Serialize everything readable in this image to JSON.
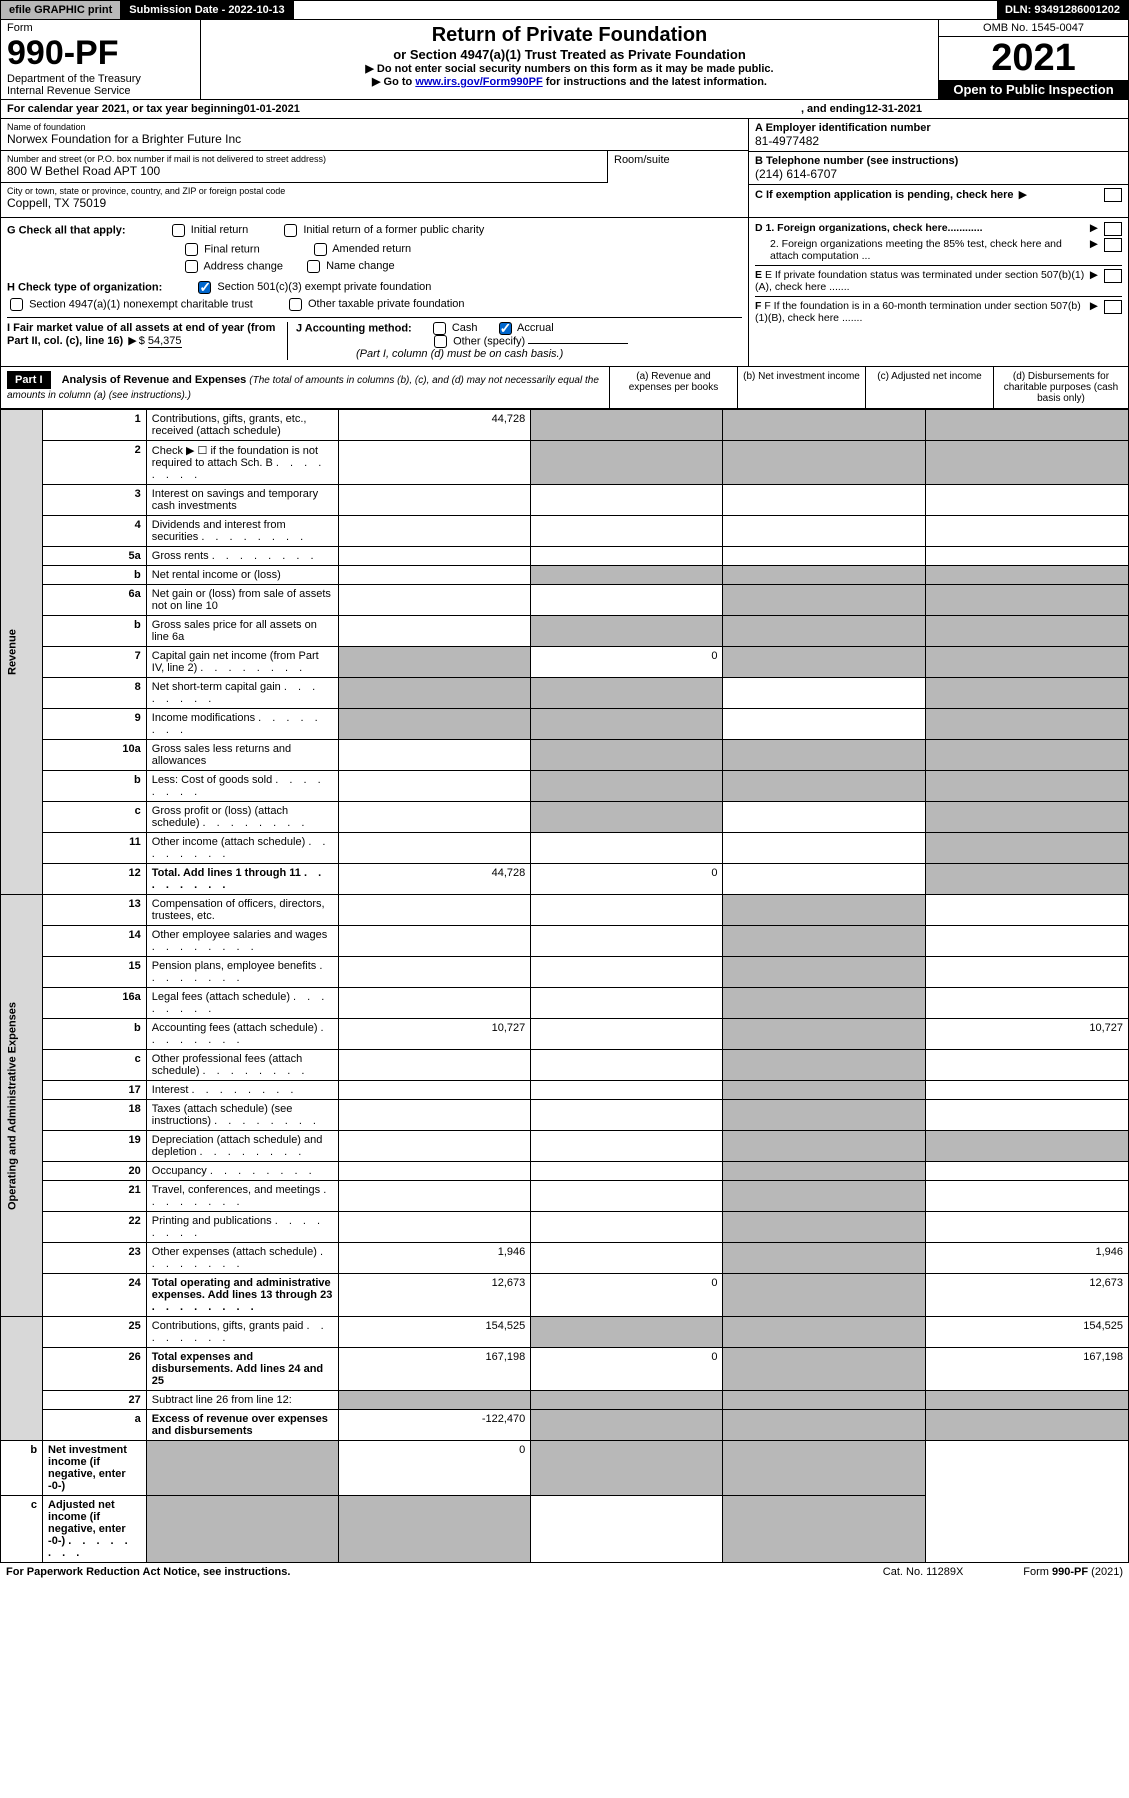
{
  "topbar": {
    "efile": "efile GRAPHIC print",
    "submission": "Submission Date - 2022-10-13",
    "dln": "DLN: 93491286001202"
  },
  "header": {
    "form_label": "Form",
    "form_number": "990-PF",
    "dept1": "Department of the Treasury",
    "dept2": "Internal Revenue Service",
    "title": "Return of Private Foundation",
    "subtitle": "or Section 4947(a)(1) Trust Treated as Private Foundation",
    "instr1": "▶ Do not enter social security numbers on this form as it may be made public.",
    "instr2_pre": "▶ Go to ",
    "instr2_link": "www.irs.gov/Form990PF",
    "instr2_post": " for instructions and the latest information.",
    "omb": "OMB No. 1545-0047",
    "year": "2021",
    "open_public": "Open to Public Inspection"
  },
  "calendar": {
    "pre": "For calendar year 2021, or tax year beginning ",
    "begin": "01-01-2021",
    "mid": ", and ending ",
    "end": "12-31-2021"
  },
  "foundation": {
    "name_label": "Name of foundation",
    "name": "Norwex Foundation for a Brighter Future Inc",
    "addr_label": "Number and street (or P.O. box number if mail is not delivered to street address)",
    "addr": "800 W Bethel Road APT 100",
    "room_label": "Room/suite",
    "city_label": "City or town, state or province, country, and ZIP or foreign postal code",
    "city": "Coppell, TX  75019",
    "ein_label": "A Employer identification number",
    "ein": "81-4977482",
    "tel_label": "B Telephone number (see instructions)",
    "tel": "(214) 614-6707",
    "c_label": "C If exemption application is pending, check here"
  },
  "checks": {
    "g_label": "G Check all that apply:",
    "g_items": [
      "Initial return",
      "Initial return of a former public charity",
      "Final return",
      "Amended return",
      "Address change",
      "Name change"
    ],
    "h_label": "H Check type of organization:",
    "h1": "Section 501(c)(3) exempt private foundation",
    "h2": "Section 4947(a)(1) nonexempt charitable trust",
    "h3": "Other taxable private foundation",
    "i_label": "I Fair market value of all assets at end of year (from Part II, col. (c), line 16)",
    "i_value": "54,375",
    "j_label": "J Accounting method:",
    "j1": "Cash",
    "j2": "Accrual",
    "j3": "Other (specify)",
    "j_note": "(Part I, column (d) must be on cash basis.)",
    "d1": "D 1. Foreign organizations, check here............",
    "d2": "2. Foreign organizations meeting the 85% test, check here and attach computation ...",
    "e": "E If private foundation status was terminated under section 507(b)(1)(A), check here .......",
    "f": "F If the foundation is in a 60-month termination under section 507(b)(1)(B), check here ......."
  },
  "part1": {
    "label": "Part I",
    "title": "Analysis of Revenue and Expenses",
    "title_note": "(The total of amounts in columns (b), (c), and (d) may not necessarily equal the amounts in column (a) (see instructions).)",
    "col_a": "(a)   Revenue and expenses per books",
    "col_b": "(b)   Net investment income",
    "col_c": "(c)   Adjusted net income",
    "col_d": "(d)   Disbursements for charitable purposes (cash basis only)"
  },
  "revenue_label": "Revenue",
  "expenses_label": "Operating and Administrative Expenses",
  "rows": [
    {
      "n": "1",
      "label": "Contributions, gifts, grants, etc., received (attach schedule)",
      "a": "44,728",
      "b_shaded": true,
      "c_shaded": true,
      "d_shaded": true
    },
    {
      "n": "2",
      "label": "Check ▶ ☐ if the foundation is not required to attach Sch. B",
      "dots": true,
      "b_shaded": true,
      "c_shaded": true,
      "d_shaded": true
    },
    {
      "n": "3",
      "label": "Interest on savings and temporary cash investments"
    },
    {
      "n": "4",
      "label": "Dividends and interest from securities",
      "dots": true
    },
    {
      "n": "5a",
      "label": "Gross rents",
      "dots": true
    },
    {
      "n": "b",
      "label": "Net rental income or (loss)",
      "b_shaded": true,
      "c_shaded": true,
      "d_shaded": true
    },
    {
      "n": "6a",
      "label": "Net gain or (loss) from sale of assets not on line 10",
      "c_shaded": true,
      "d_shaded": true
    },
    {
      "n": "b",
      "label": "Gross sales price for all assets on line 6a",
      "b_shaded": true,
      "c_shaded": true,
      "d_shaded": true
    },
    {
      "n": "7",
      "label": "Capital gain net income (from Part IV, line 2)",
      "dots": true,
      "a_shaded": true,
      "b": "0",
      "c_shaded": true,
      "d_shaded": true
    },
    {
      "n": "8",
      "label": "Net short-term capital gain",
      "dots": true,
      "a_shaded": true,
      "b_shaded": true,
      "d_shaded": true
    },
    {
      "n": "9",
      "label": "Income modifications",
      "dots": true,
      "a_shaded": true,
      "b_shaded": true,
      "d_shaded": true
    },
    {
      "n": "10a",
      "label": "Gross sales less returns and allowances",
      "b_shaded": true,
      "c_shaded": true,
      "d_shaded": true
    },
    {
      "n": "b",
      "label": "Less: Cost of goods sold",
      "dots": true,
      "b_shaded": true,
      "c_shaded": true,
      "d_shaded": true
    },
    {
      "n": "c",
      "label": "Gross profit or (loss) (attach schedule)",
      "dots": true,
      "b_shaded": true,
      "d_shaded": true
    },
    {
      "n": "11",
      "label": "Other income (attach schedule)",
      "dots": true,
      "d_shaded": true
    },
    {
      "n": "12",
      "label": "Total. Add lines 1 through 11",
      "dots": true,
      "bold": true,
      "a": "44,728",
      "b": "0",
      "d_shaded": true
    },
    {
      "n": "13",
      "label": "Compensation of officers, directors, trustees, etc.",
      "c_shaded": true
    },
    {
      "n": "14",
      "label": "Other employee salaries and wages",
      "dots": true,
      "c_shaded": true
    },
    {
      "n": "15",
      "label": "Pension plans, employee benefits",
      "dots": true,
      "c_shaded": true
    },
    {
      "n": "16a",
      "label": "Legal fees (attach schedule)",
      "dots": true,
      "c_shaded": true
    },
    {
      "n": "b",
      "label": "Accounting fees (attach schedule)",
      "dots": true,
      "a": "10,727",
      "c_shaded": true,
      "d": "10,727"
    },
    {
      "n": "c",
      "label": "Other professional fees (attach schedule)",
      "dots": true,
      "c_shaded": true
    },
    {
      "n": "17",
      "label": "Interest",
      "dots": true,
      "c_shaded": true
    },
    {
      "n": "18",
      "label": "Taxes (attach schedule) (see instructions)",
      "dots": true,
      "c_shaded": true
    },
    {
      "n": "19",
      "label": "Depreciation (attach schedule) and depletion",
      "dots": true,
      "c_shaded": true,
      "d_shaded": true
    },
    {
      "n": "20",
      "label": "Occupancy",
      "dots": true,
      "c_shaded": true
    },
    {
      "n": "21",
      "label": "Travel, conferences, and meetings",
      "dots": true,
      "c_shaded": true
    },
    {
      "n": "22",
      "label": "Printing and publications",
      "dots": true,
      "c_shaded": true
    },
    {
      "n": "23",
      "label": "Other expenses (attach schedule)",
      "dots": true,
      "a": "1,946",
      "c_shaded": true,
      "d": "1,946"
    },
    {
      "n": "24",
      "label": "Total operating and administrative expenses. Add lines 13 through 23",
      "dots": true,
      "bold": true,
      "a": "12,673",
      "b": "0",
      "c_shaded": true,
      "d": "12,673"
    },
    {
      "n": "25",
      "label": "Contributions, gifts, grants paid",
      "dots": true,
      "a": "154,525",
      "b_shaded": true,
      "c_shaded": true,
      "d": "154,525"
    },
    {
      "n": "26",
      "label": "Total expenses and disbursements. Add lines 24 and 25",
      "bold": true,
      "a": "167,198",
      "b": "0",
      "c_shaded": true,
      "d": "167,198"
    },
    {
      "n": "27",
      "label": "Subtract line 26 from line 12:",
      "a_shaded": true,
      "b_shaded": true,
      "c_shaded": true,
      "d_shaded": true
    },
    {
      "n": "a",
      "label": "Excess of revenue over expenses and disbursements",
      "bold": true,
      "a": "-122,470",
      "b_shaded": true,
      "c_shaded": true,
      "d_shaded": true
    },
    {
      "n": "b",
      "label": "Net investment income (if negative, enter -0-)",
      "bold": true,
      "a_shaded": true,
      "b": "0",
      "c_shaded": true,
      "d_shaded": true
    },
    {
      "n": "c",
      "label": "Adjusted net income (if negative, enter -0-)",
      "dots": true,
      "bold": true,
      "a_shaded": true,
      "b_shaded": true,
      "d_shaded": true
    }
  ],
  "footer": {
    "left": "For Paperwork Reduction Act Notice, see instructions.",
    "center": "Cat. No. 11289X",
    "right": "Form 990-PF (2021)"
  }
}
